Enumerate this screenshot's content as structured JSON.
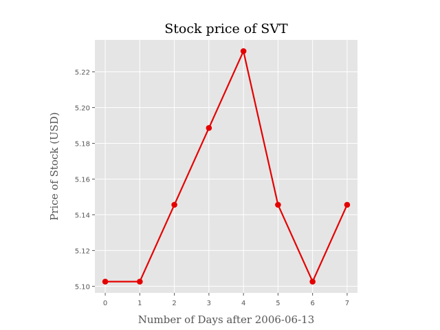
{
  "chart_data": {
    "type": "line",
    "title": "Stock price of SVT",
    "xlabel": "Number of Days after 2006-06-13",
    "ylabel": "Price of Stock (USD)",
    "x": [
      0,
      1,
      2,
      3,
      4,
      5,
      6,
      7
    ],
    "series": [
      {
        "values": [
          5.1026,
          5.1026,
          5.1456,
          5.1886,
          5.2316,
          5.1456,
          5.1026,
          5.1456
        ]
      }
    ],
    "xlim": [
      -0.3,
      7.3
    ],
    "ylim": [
      5.0963,
      5.2379
    ],
    "xticks": [
      0,
      1,
      2,
      3,
      4,
      5,
      6,
      7
    ],
    "xtick_labels": [
      "0",
      "1",
      "2",
      "3",
      "4",
      "5",
      "6",
      "7"
    ],
    "yticks": [
      5.1,
      5.12,
      5.14,
      5.16,
      5.18,
      5.2,
      5.22
    ],
    "ytick_labels": [
      "5.10",
      "5.12",
      "5.14",
      "5.16",
      "5.18",
      "5.20",
      "5.22"
    ],
    "grid": true,
    "colors": {
      "line": "#e50000",
      "plot_background": "#e5e5e5",
      "grid": "#ffffff",
      "text": "#555555"
    }
  }
}
